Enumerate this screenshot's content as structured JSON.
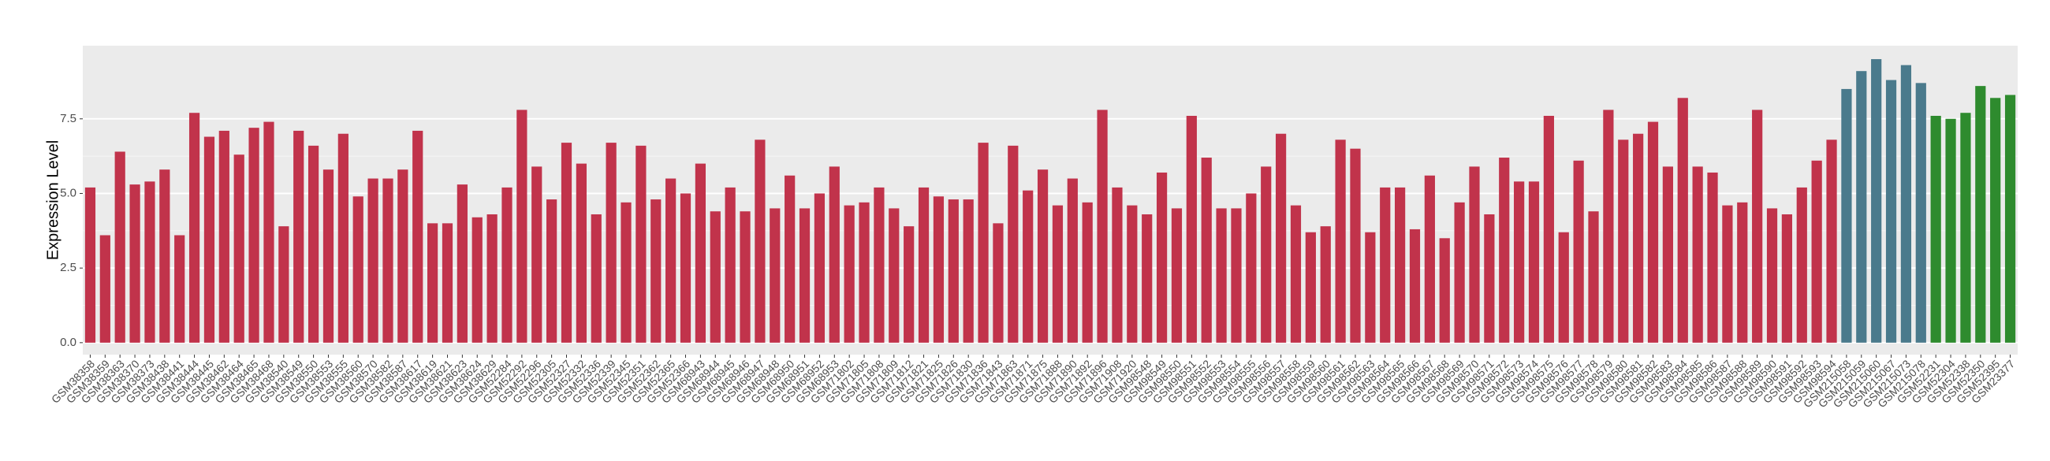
{
  "chart_data": {
    "type": "bar",
    "y_label": "Expression Level",
    "ylim": [
      -0.4,
      9.95
    ],
    "yticks": [
      {
        "value": 0,
        "label": "0.0"
      },
      2.5,
      {
        "value": 5,
        "label": "5.0"
      },
      7.5
    ],
    "grid": true,
    "groups": [
      {
        "color": "#c1334b",
        "categories": [
          "GSM38358",
          "GSM38359",
          "GSM38363",
          "GSM38370",
          "GSM38373",
          "GSM38438",
          "GSM38441",
          "GSM38444",
          "GSM38445",
          "GSM38462",
          "GSM38464",
          "GSM38465",
          "GSM38468",
          "GSM38540",
          "GSM38549",
          "GSM38550",
          "GSM38553",
          "GSM38555",
          "GSM38560",
          "GSM38570",
          "GSM38582",
          "GSM38587",
          "GSM38617",
          "GSM38619",
          "GSM38621",
          "GSM38623",
          "GSM38624",
          "GSM38629",
          "GSM52284",
          "GSM52292",
          "GSM52296",
          "GSM52305",
          "GSM52327",
          "GSM52332",
          "GSM52336",
          "GSM52339",
          "GSM52345",
          "GSM52351",
          "GSM52362",
          "GSM52365",
          "GSM52366",
          "GSM68943",
          "GSM68944",
          "GSM68945",
          "GSM68946",
          "GSM68947",
          "GSM68948",
          "GSM68950",
          "GSM68951",
          "GSM68952",
          "GSM68953",
          "GSM71802",
          "GSM71805",
          "GSM71808",
          "GSM71809",
          "GSM71812",
          "GSM71821",
          "GSM71825",
          "GSM71826",
          "GSM71830",
          "GSM71836",
          "GSM71843",
          "GSM71863",
          "GSM71871",
          "GSM71875",
          "GSM71888",
          "GSM71890",
          "GSM71892",
          "GSM71896",
          "GSM71908",
          "GSM71920",
          "GSM98548",
          "GSM98549",
          "GSM98550",
          "GSM98551",
          "GSM98552",
          "GSM98553",
          "GSM98554",
          "GSM98555",
          "GSM98556",
          "GSM98557",
          "GSM98558",
          "GSM98559",
          "GSM98560",
          "GSM98561",
          "GSM98562",
          "GSM98563",
          "GSM98564",
          "GSM98565",
          "GSM98566",
          "GSM98567",
          "GSM98568",
          "GSM98569",
          "GSM98570",
          "GSM98571",
          "GSM98572",
          "GSM98573",
          "GSM98574",
          "GSM98575",
          "GSM98576",
          "GSM98577",
          "GSM98578",
          "GSM98579",
          "GSM98580",
          "GSM98581",
          "GSM98582",
          "GSM98583",
          "GSM98584",
          "GSM98585",
          "GSM98586",
          "GSM98587",
          "GSM98588",
          "GSM98589",
          "GSM98590",
          "GSM98591",
          "GSM98592",
          "GSM98593",
          "GSM98594"
        ],
        "values": [
          5.2,
          3.6,
          6.4,
          5.3,
          5.4,
          5.8,
          3.6,
          7.7,
          6.9,
          7.1,
          6.3,
          7.2,
          7.4,
          3.9,
          7.1,
          6.6,
          5.8,
          7.0,
          4.9,
          5.5,
          5.5,
          5.8,
          7.1,
          4.0,
          4.0,
          5.3,
          4.2,
          4.3,
          5.2,
          7.8,
          5.9,
          4.8,
          6.7,
          6.0,
          4.3,
          6.7,
          4.7,
          6.6,
          4.8,
          5.5,
          5.0,
          6.0,
          4.4,
          5.2,
          4.4,
          6.8,
          4.5,
          5.6,
          4.5,
          5.0,
          5.9,
          4.6,
          4.7,
          5.2,
          4.5,
          3.9,
          5.2,
          4.9,
          4.8,
          4.8,
          6.7,
          4.0,
          6.6,
          5.1,
          5.8,
          4.6,
          5.5,
          4.7,
          7.8,
          5.2,
          4.6,
          4.3,
          5.7,
          4.5,
          7.6,
          6.2,
          4.5,
          4.5,
          5.0,
          5.9,
          7.0,
          4.6,
          3.7,
          3.9,
          6.8,
          6.5,
          3.7,
          5.2,
          5.2,
          3.8,
          5.6,
          3.5,
          4.7,
          5.9,
          4.3,
          6.2,
          5.4,
          5.4,
          7.6,
          3.7,
          6.1,
          4.4,
          7.8,
          6.8,
          7.0,
          7.4,
          5.9,
          8.2,
          5.9,
          5.7,
          4.6,
          4.7,
          7.8,
          4.5,
          4.3,
          5.2,
          6.1,
          6.8
        ]
      },
      {
        "color": "#4a7a8c",
        "categories": [
          "GSM215058",
          "GSM215059",
          "GSM215060",
          "GSM215067",
          "GSM215073",
          "GSM215078"
        ],
        "values": [
          8.5,
          9.1,
          9.5,
          8.8,
          9.3,
          8.7
        ]
      },
      {
        "color": "#2e8b2e",
        "categories": [
          "GSM52231",
          "GSM52304",
          "GSM52338",
          "GSM52350",
          "GSM52395",
          "GSM23377"
        ],
        "values": [
          7.6,
          7.5,
          7.7,
          8.6,
          8.2,
          8.3
        ]
      }
    ]
  }
}
